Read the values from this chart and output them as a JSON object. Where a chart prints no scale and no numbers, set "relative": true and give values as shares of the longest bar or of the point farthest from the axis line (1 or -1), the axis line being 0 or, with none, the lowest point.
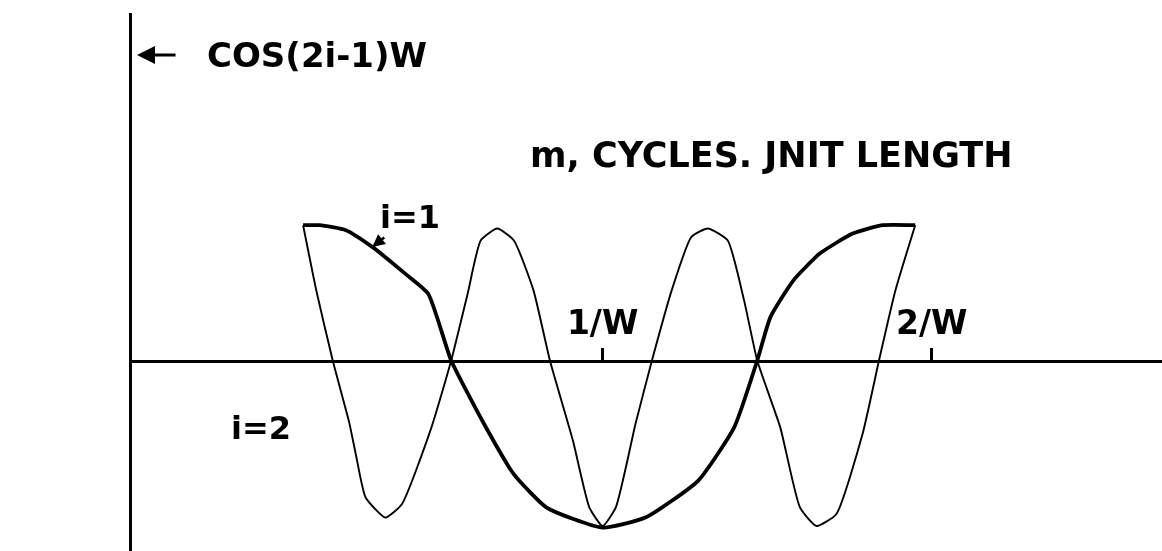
{
  "chart_data": {
    "type": "line",
    "xlabel": "m, CYCLES. JNIT LENGTH",
    "ylabel": "COS(2i-1)W",
    "relative": true,
    "xlim": [
      -0.43,
      2.7
    ],
    "xticks": [
      {
        "value": 1,
        "label": "1/W"
      },
      {
        "value": 2,
        "label": "2/W"
      }
    ],
    "grid": false,
    "legend": false,
    "marker": "none",
    "line_style": "solid",
    "series": [
      {
        "name": "i=1",
        "color": "#000000",
        "x": [
          0.09,
          0.14,
          0.22,
          0.3,
          0.4,
          0.47,
          0.54,
          0.64,
          0.73,
          0.83,
          1.0,
          1.13,
          1.29,
          1.4,
          1.47,
          1.51,
          1.58,
          1.66,
          1.76,
          1.85,
          1.95
        ],
        "values": [
          0.81,
          0.81,
          0.78,
          0.68,
          0.52,
          0.4,
          0.0,
          -0.38,
          -0.68,
          -0.88,
          -1.0,
          -0.94,
          -0.72,
          -0.4,
          0.0,
          0.26,
          0.48,
          0.64,
          0.76,
          0.81,
          0.81
        ]
      },
      {
        "name": "i=2",
        "color": "#000000",
        "x": [
          0.09,
          0.13,
          0.18,
          0.23,
          0.25,
          0.28,
          0.34,
          0.39,
          0.48,
          0.54,
          0.59,
          0.63,
          0.68,
          0.73,
          0.79,
          0.84,
          0.91,
          0.96,
          1.0,
          1.04,
          1.1,
          1.15,
          1.21,
          1.27,
          1.32,
          1.38,
          1.43,
          1.47,
          1.54,
          1.6,
          1.65,
          1.71,
          1.79,
          1.84,
          1.89,
          1.95
        ],
        "values": [
          0.81,
          0.42,
          0.0,
          -0.37,
          -0.56,
          -0.82,
          -0.94,
          -0.86,
          -0.4,
          0.0,
          0.4,
          0.72,
          0.79,
          0.72,
          0.42,
          0.0,
          -0.48,
          -0.88,
          -0.99,
          -0.88,
          -0.38,
          0.0,
          0.42,
          0.74,
          0.79,
          0.72,
          0.36,
          0.0,
          -0.4,
          -0.88,
          -0.99,
          -0.92,
          -0.44,
          0.0,
          0.42,
          0.81
        ]
      }
    ]
  }
}
